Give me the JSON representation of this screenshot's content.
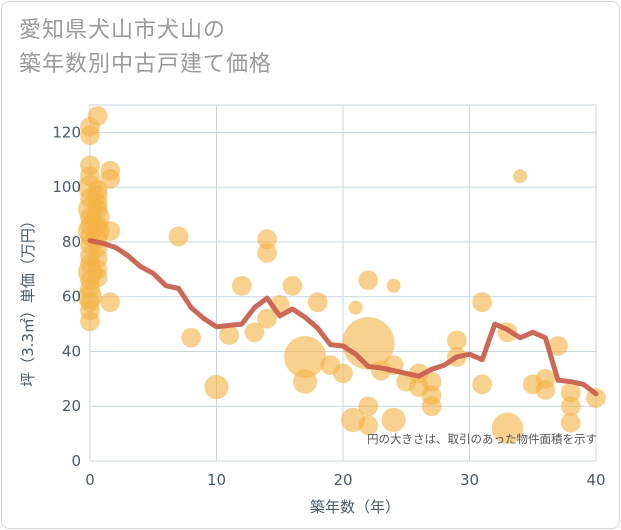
{
  "chart_data": {
    "type": "scatter",
    "title_lines": [
      "愛知県犬山市犬山の",
      "築年数別中古戸建て価格"
    ],
    "xlabel": "築年数（年）",
    "ylabel": "坪（3.3㎡）単価（万円）",
    "xlim": [
      0,
      40
    ],
    "ylim": [
      0,
      130
    ],
    "x_ticks": [
      0,
      10,
      20,
      30,
      40
    ],
    "y_ticks": [
      0,
      20,
      40,
      60,
      80,
      100,
      120
    ],
    "grid": true,
    "note": "円の大きさは、取引のあった物件面積を示す",
    "colors": {
      "bubble": "#f4b342",
      "trend": "#c9604e",
      "grid": "#c8d6e2"
    },
    "points": [
      {
        "x": 0,
        "y": 122,
        "s": 2
      },
      {
        "x": 0,
        "y": 119,
        "s": 2
      },
      {
        "x": 0,
        "y": 108,
        "s": 2
      },
      {
        "x": 0,
        "y": 104,
        "s": 2
      },
      {
        "x": 0,
        "y": 100,
        "s": 3
      },
      {
        "x": 0,
        "y": 96,
        "s": 2
      },
      {
        "x": 0,
        "y": 92,
        "s": 3
      },
      {
        "x": 0,
        "y": 89,
        "s": 2
      },
      {
        "x": 0,
        "y": 86,
        "s": 2
      },
      {
        "x": 0,
        "y": 84,
        "s": 3
      },
      {
        "x": 0,
        "y": 82,
        "s": 2
      },
      {
        "x": 0,
        "y": 79,
        "s": 2
      },
      {
        "x": 0,
        "y": 75,
        "s": 2
      },
      {
        "x": 0,
        "y": 72,
        "s": 2
      },
      {
        "x": 0,
        "y": 69,
        "s": 3
      },
      {
        "x": 0,
        "y": 66,
        "s": 2
      },
      {
        "x": 0,
        "y": 63,
        "s": 2
      },
      {
        "x": 0,
        "y": 60,
        "s": 3
      },
      {
        "x": 0,
        "y": 58,
        "s": 2
      },
      {
        "x": 0,
        "y": 55,
        "s": 2
      },
      {
        "x": 0,
        "y": 51,
        "s": 2
      },
      {
        "x": 0.6,
        "y": 126,
        "s": 2
      },
      {
        "x": 0.6,
        "y": 99,
        "s": 2
      },
      {
        "x": 0.6,
        "y": 97,
        "s": 2
      },
      {
        "x": 0.6,
        "y": 94,
        "s": 2
      },
      {
        "x": 0.6,
        "y": 92,
        "s": 2
      },
      {
        "x": 0.6,
        "y": 89,
        "s": 3
      },
      {
        "x": 0.6,
        "y": 86,
        "s": 2
      },
      {
        "x": 0.6,
        "y": 84,
        "s": 3
      },
      {
        "x": 0.6,
        "y": 81,
        "s": 2
      },
      {
        "x": 0.6,
        "y": 78,
        "s": 2
      },
      {
        "x": 0.6,
        "y": 74,
        "s": 2
      },
      {
        "x": 0.6,
        "y": 70,
        "s": 2
      },
      {
        "x": 0.6,
        "y": 67,
        "s": 2
      },
      {
        "x": 1.6,
        "y": 106,
        "s": 2
      },
      {
        "x": 1.6,
        "y": 103,
        "s": 2
      },
      {
        "x": 1.6,
        "y": 84,
        "s": 2
      },
      {
        "x": 1.6,
        "y": 58,
        "s": 2
      },
      {
        "x": 7,
        "y": 82,
        "s": 2
      },
      {
        "x": 8,
        "y": 45,
        "s": 2
      },
      {
        "x": 10,
        "y": 27,
        "s": 3
      },
      {
        "x": 11,
        "y": 46,
        "s": 2
      },
      {
        "x": 12,
        "y": 64,
        "s": 2
      },
      {
        "x": 13,
        "y": 47,
        "s": 2
      },
      {
        "x": 14,
        "y": 81,
        "s": 2
      },
      {
        "x": 14,
        "y": 76,
        "s": 2
      },
      {
        "x": 14,
        "y": 52,
        "s": 2
      },
      {
        "x": 15,
        "y": 57,
        "s": 2
      },
      {
        "x": 16,
        "y": 64,
        "s": 2
      },
      {
        "x": 17,
        "y": 38,
        "s": 9
      },
      {
        "x": 17,
        "y": 29,
        "s": 3
      },
      {
        "x": 18,
        "y": 58,
        "s": 2
      },
      {
        "x": 19,
        "y": 35,
        "s": 2
      },
      {
        "x": 20,
        "y": 32,
        "s": 2
      },
      {
        "x": 20.8,
        "y": 15,
        "s": 3
      },
      {
        "x": 21,
        "y": 56,
        "s": 1
      },
      {
        "x": 22,
        "y": 43,
        "s": 14
      },
      {
        "x": 22,
        "y": 66,
        "s": 2
      },
      {
        "x": 22,
        "y": 20,
        "s": 2
      },
      {
        "x": 22,
        "y": 13,
        "s": 2
      },
      {
        "x": 23,
        "y": 33,
        "s": 2
      },
      {
        "x": 24,
        "y": 64,
        "s": 1
      },
      {
        "x": 24,
        "y": 35,
        "s": 2
      },
      {
        "x": 24,
        "y": 15,
        "s": 3
      },
      {
        "x": 25,
        "y": 29,
        "s": 2
      },
      {
        "x": 26,
        "y": 32,
        "s": 2
      },
      {
        "x": 26,
        "y": 27,
        "s": 2
      },
      {
        "x": 27,
        "y": 29,
        "s": 2
      },
      {
        "x": 27,
        "y": 24,
        "s": 2
      },
      {
        "x": 27,
        "y": 20,
        "s": 2
      },
      {
        "x": 29,
        "y": 44,
        "s": 2
      },
      {
        "x": 29,
        "y": 38,
        "s": 2
      },
      {
        "x": 31,
        "y": 58,
        "s": 2
      },
      {
        "x": 31,
        "y": 28,
        "s": 2
      },
      {
        "x": 33,
        "y": 47,
        "s": 2
      },
      {
        "x": 33,
        "y": 12,
        "s": 5
      },
      {
        "x": 34,
        "y": 104,
        "s": 1
      },
      {
        "x": 35,
        "y": 28,
        "s": 2
      },
      {
        "x": 36,
        "y": 30,
        "s": 2
      },
      {
        "x": 36,
        "y": 26,
        "s": 2
      },
      {
        "x": 37,
        "y": 42,
        "s": 2
      },
      {
        "x": 38,
        "y": 25,
        "s": 2
      },
      {
        "x": 38,
        "y": 20,
        "s": 2
      },
      {
        "x": 38,
        "y": 14,
        "s": 2
      },
      {
        "x": 40,
        "y": 23,
        "s": 2
      }
    ],
    "trend": [
      {
        "x": 0,
        "y": 80.5
      },
      {
        "x": 1,
        "y": 79.5
      },
      {
        "x": 2,
        "y": 78
      },
      {
        "x": 3,
        "y": 75
      },
      {
        "x": 4,
        "y": 71
      },
      {
        "x": 5,
        "y": 68.5
      },
      {
        "x": 6,
        "y": 64
      },
      {
        "x": 7,
        "y": 63
      },
      {
        "x": 8,
        "y": 56
      },
      {
        "x": 9,
        "y": 52
      },
      {
        "x": 10,
        "y": 49
      },
      {
        "x": 11,
        "y": 49.5
      },
      {
        "x": 12,
        "y": 50
      },
      {
        "x": 13,
        "y": 56
      },
      {
        "x": 14,
        "y": 59.5
      },
      {
        "x": 15,
        "y": 53
      },
      {
        "x": 16,
        "y": 55.5
      },
      {
        "x": 17,
        "y": 52.5
      },
      {
        "x": 18,
        "y": 48.5
      },
      {
        "x": 19,
        "y": 42.5
      },
      {
        "x": 20,
        "y": 42
      },
      {
        "x": 21,
        "y": 39
      },
      {
        "x": 22,
        "y": 34.5
      },
      {
        "x": 23,
        "y": 34
      },
      {
        "x": 24,
        "y": 33
      },
      {
        "x": 25,
        "y": 32
      },
      {
        "x": 26,
        "y": 31
      },
      {
        "x": 27,
        "y": 33.5
      },
      {
        "x": 28,
        "y": 35
      },
      {
        "x": 29,
        "y": 38
      },
      {
        "x": 30,
        "y": 39
      },
      {
        "x": 31,
        "y": 37
      },
      {
        "x": 32,
        "y": 50
      },
      {
        "x": 33,
        "y": 48
      },
      {
        "x": 34,
        "y": 45
      },
      {
        "x": 35,
        "y": 47
      },
      {
        "x": 36,
        "y": 45
      },
      {
        "x": 37,
        "y": 29.5
      },
      {
        "x": 38,
        "y": 29
      },
      {
        "x": 39,
        "y": 28
      },
      {
        "x": 40,
        "y": 24.5
      }
    ]
  }
}
